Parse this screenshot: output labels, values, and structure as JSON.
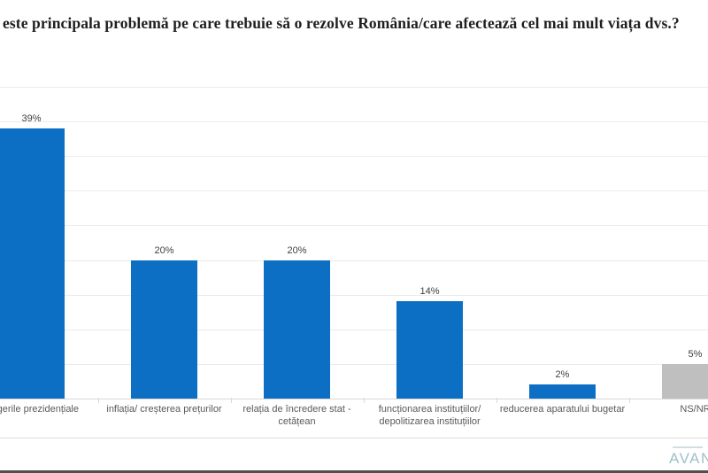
{
  "header": {
    "title": "este principala problemă pe care trebuie să o rezolve România/care afectează cel mai mult viața dvs.?"
  },
  "chart_data": {
    "type": "bar",
    "title": "este principala problemă pe care trebuie să o rezolve România/care afectează cel mai mult viața dvs.?",
    "categories": [
      "alegerile  prezidențiale",
      "inflația/ creșterea prețurilor",
      "relația de încredere stat - cetățean",
      "funcționarea instituțiilor/ depolitizarea instituțiilor",
      "reducerea aparatului bugetar",
      "NS/NR"
    ],
    "values": [
      39,
      20,
      20,
      14,
      2,
      5
    ],
    "value_labels": [
      "39%",
      "20%",
      "20%",
      "14%",
      "2%",
      "5%"
    ],
    "bar_colors": [
      "#0c6fc4",
      "#0c6fc4",
      "#0c6fc4",
      "#0c6fc4",
      "#0c6fc4",
      "#bfbfbf"
    ],
    "xlabel": "",
    "ylabel": "",
    "ylim": [
      0,
      45
    ],
    "gridline_step": 5,
    "grid": true,
    "legend": false,
    "notes": "first category and last category partially cut off at image edges"
  },
  "colors": {
    "bar_blue": "#0c6fc4",
    "bar_gray": "#bfbfbf",
    "gridline": "#ebebeb",
    "axis": "#d9d9d9",
    "value_label": "#404040",
    "category_label": "#595959",
    "bottom_bar": "#4f4f4f",
    "logo": "#9fbfcb"
  },
  "footer": {
    "logo_text": "AVANG"
  }
}
